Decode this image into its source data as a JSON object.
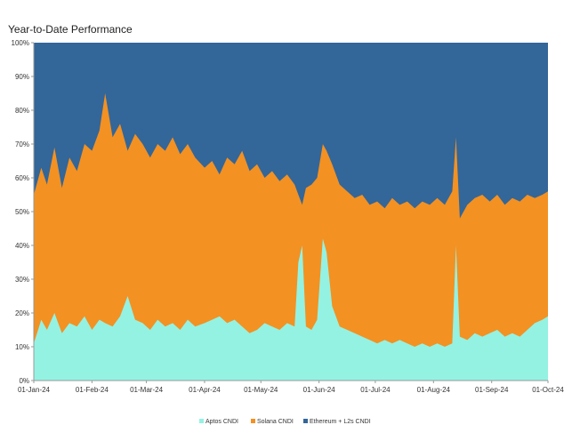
{
  "chart_data": {
    "type": "area",
    "title": "Year-to-Date Performance",
    "stacked": "percent",
    "ylim": [
      0,
      100
    ],
    "y_ticks": [
      "0%",
      "10%",
      "20%",
      "30%",
      "40%",
      "50%",
      "60%",
      "70%",
      "80%",
      "90%",
      "100%"
    ],
    "x_ticks": [
      "01-Jan-24",
      "01-Feb-24",
      "01-Mar-24",
      "01-Apr-24",
      "01-May-24",
      "01-Jun-24",
      "01-Jul-24",
      "01-Aug-24",
      "01-Sep-24",
      "01-Oct-24"
    ],
    "x_range": [
      "2024-01-01",
      "2024-10-01"
    ],
    "legend_position": "bottom",
    "grid": false,
    "series": [
      {
        "name": "Aptos CNDI",
        "color": "#94F2E3",
        "points": [
          [
            "2024-01-01",
            11
          ],
          [
            "2024-01-05",
            18
          ],
          [
            "2024-01-08",
            15
          ],
          [
            "2024-01-12",
            20
          ],
          [
            "2024-01-16",
            14
          ],
          [
            "2024-01-20",
            17
          ],
          [
            "2024-01-24",
            16
          ],
          [
            "2024-01-28",
            19
          ],
          [
            "2024-02-01",
            15
          ],
          [
            "2024-02-05",
            18
          ],
          [
            "2024-02-08",
            17
          ],
          [
            "2024-02-12",
            16
          ],
          [
            "2024-02-16",
            19
          ],
          [
            "2024-02-20",
            25
          ],
          [
            "2024-02-24",
            18
          ],
          [
            "2024-02-28",
            17
          ],
          [
            "2024-03-03",
            15
          ],
          [
            "2024-03-07",
            18
          ],
          [
            "2024-03-11",
            16
          ],
          [
            "2024-03-15",
            17
          ],
          [
            "2024-03-19",
            15
          ],
          [
            "2024-03-23",
            18
          ],
          [
            "2024-03-27",
            16
          ],
          [
            "2024-04-01",
            17
          ],
          [
            "2024-04-05",
            18
          ],
          [
            "2024-04-09",
            19
          ],
          [
            "2024-04-13",
            17
          ],
          [
            "2024-04-17",
            18
          ],
          [
            "2024-04-21",
            16
          ],
          [
            "2024-04-25",
            14
          ],
          [
            "2024-04-29",
            15
          ],
          [
            "2024-05-03",
            17
          ],
          [
            "2024-05-07",
            16
          ],
          [
            "2024-05-11",
            15
          ],
          [
            "2024-05-15",
            17
          ],
          [
            "2024-05-19",
            16
          ],
          [
            "2024-05-21",
            35
          ],
          [
            "2024-05-23",
            40
          ],
          [
            "2024-05-25",
            16
          ],
          [
            "2024-05-28",
            15
          ],
          [
            "2024-05-31",
            18
          ],
          [
            "2024-06-03",
            42
          ],
          [
            "2024-06-05",
            38
          ],
          [
            "2024-06-08",
            22
          ],
          [
            "2024-06-12",
            16
          ],
          [
            "2024-06-16",
            15
          ],
          [
            "2024-06-20",
            14
          ],
          [
            "2024-06-24",
            13
          ],
          [
            "2024-06-28",
            12
          ],
          [
            "2024-07-02",
            11
          ],
          [
            "2024-07-06",
            12
          ],
          [
            "2024-07-10",
            11
          ],
          [
            "2024-07-14",
            12
          ],
          [
            "2024-07-18",
            11
          ],
          [
            "2024-07-22",
            10
          ],
          [
            "2024-07-26",
            11
          ],
          [
            "2024-07-30",
            10
          ],
          [
            "2024-08-03",
            11
          ],
          [
            "2024-08-07",
            10
          ],
          [
            "2024-08-11",
            11
          ],
          [
            "2024-08-13",
            40
          ],
          [
            "2024-08-15",
            13
          ],
          [
            "2024-08-19",
            12
          ],
          [
            "2024-08-23",
            14
          ],
          [
            "2024-08-27",
            13
          ],
          [
            "2024-08-31",
            14
          ],
          [
            "2024-09-04",
            15
          ],
          [
            "2024-09-08",
            13
          ],
          [
            "2024-09-12",
            14
          ],
          [
            "2024-09-16",
            13
          ],
          [
            "2024-09-20",
            15
          ],
          [
            "2024-09-24",
            17
          ],
          [
            "2024-09-28",
            18
          ],
          [
            "2024-10-01",
            19
          ]
        ]
      },
      {
        "name": "Solana CNDI",
        "color": "#F39122",
        "points": [
          [
            "2024-01-01",
            55
          ],
          [
            "2024-01-05",
            63
          ],
          [
            "2024-01-08",
            58
          ],
          [
            "2024-01-12",
            69
          ],
          [
            "2024-01-16",
            57
          ],
          [
            "2024-01-20",
            66
          ],
          [
            "2024-01-24",
            62
          ],
          [
            "2024-01-28",
            70
          ],
          [
            "2024-02-01",
            68
          ],
          [
            "2024-02-05",
            74
          ],
          [
            "2024-02-08",
            85
          ],
          [
            "2024-02-12",
            72
          ],
          [
            "2024-02-16",
            76
          ],
          [
            "2024-02-20",
            68
          ],
          [
            "2024-02-24",
            73
          ],
          [
            "2024-02-28",
            70
          ],
          [
            "2024-03-03",
            66
          ],
          [
            "2024-03-07",
            70
          ],
          [
            "2024-03-11",
            68
          ],
          [
            "2024-03-15",
            72
          ],
          [
            "2024-03-19",
            67
          ],
          [
            "2024-03-23",
            70
          ],
          [
            "2024-03-27",
            66
          ],
          [
            "2024-04-01",
            63
          ],
          [
            "2024-04-05",
            65
          ],
          [
            "2024-04-09",
            61
          ],
          [
            "2024-04-13",
            66
          ],
          [
            "2024-04-17",
            64
          ],
          [
            "2024-04-21",
            68
          ],
          [
            "2024-04-25",
            62
          ],
          [
            "2024-04-29",
            64
          ],
          [
            "2024-05-03",
            60
          ],
          [
            "2024-05-07",
            62
          ],
          [
            "2024-05-11",
            59
          ],
          [
            "2024-05-15",
            61
          ],
          [
            "2024-05-19",
            58
          ],
          [
            "2024-05-21",
            55
          ],
          [
            "2024-05-23",
            52
          ],
          [
            "2024-05-25",
            57
          ],
          [
            "2024-05-28",
            58
          ],
          [
            "2024-05-31",
            60
          ],
          [
            "2024-06-03",
            70
          ],
          [
            "2024-06-05",
            68
          ],
          [
            "2024-06-08",
            64
          ],
          [
            "2024-06-12",
            58
          ],
          [
            "2024-06-16",
            56
          ],
          [
            "2024-06-20",
            54
          ],
          [
            "2024-06-24",
            55
          ],
          [
            "2024-06-28",
            52
          ],
          [
            "2024-07-02",
            53
          ],
          [
            "2024-07-06",
            51
          ],
          [
            "2024-07-10",
            54
          ],
          [
            "2024-07-14",
            52
          ],
          [
            "2024-07-18",
            53
          ],
          [
            "2024-07-22",
            51
          ],
          [
            "2024-07-26",
            53
          ],
          [
            "2024-07-30",
            52
          ],
          [
            "2024-08-03",
            54
          ],
          [
            "2024-08-07",
            52
          ],
          [
            "2024-08-11",
            56
          ],
          [
            "2024-08-13",
            72
          ],
          [
            "2024-08-15",
            48
          ],
          [
            "2024-08-19",
            52
          ],
          [
            "2024-08-23",
            54
          ],
          [
            "2024-08-27",
            55
          ],
          [
            "2024-08-31",
            53
          ],
          [
            "2024-09-04",
            55
          ],
          [
            "2024-09-08",
            52
          ],
          [
            "2024-09-12",
            54
          ],
          [
            "2024-09-16",
            53
          ],
          [
            "2024-09-20",
            55
          ],
          [
            "2024-09-24",
            54
          ],
          [
            "2024-09-28",
            55
          ],
          [
            "2024-10-01",
            56
          ]
        ]
      },
      {
        "name": "Ethereum + L2s CNDI",
        "color": "#336699",
        "points": []
      }
    ]
  }
}
